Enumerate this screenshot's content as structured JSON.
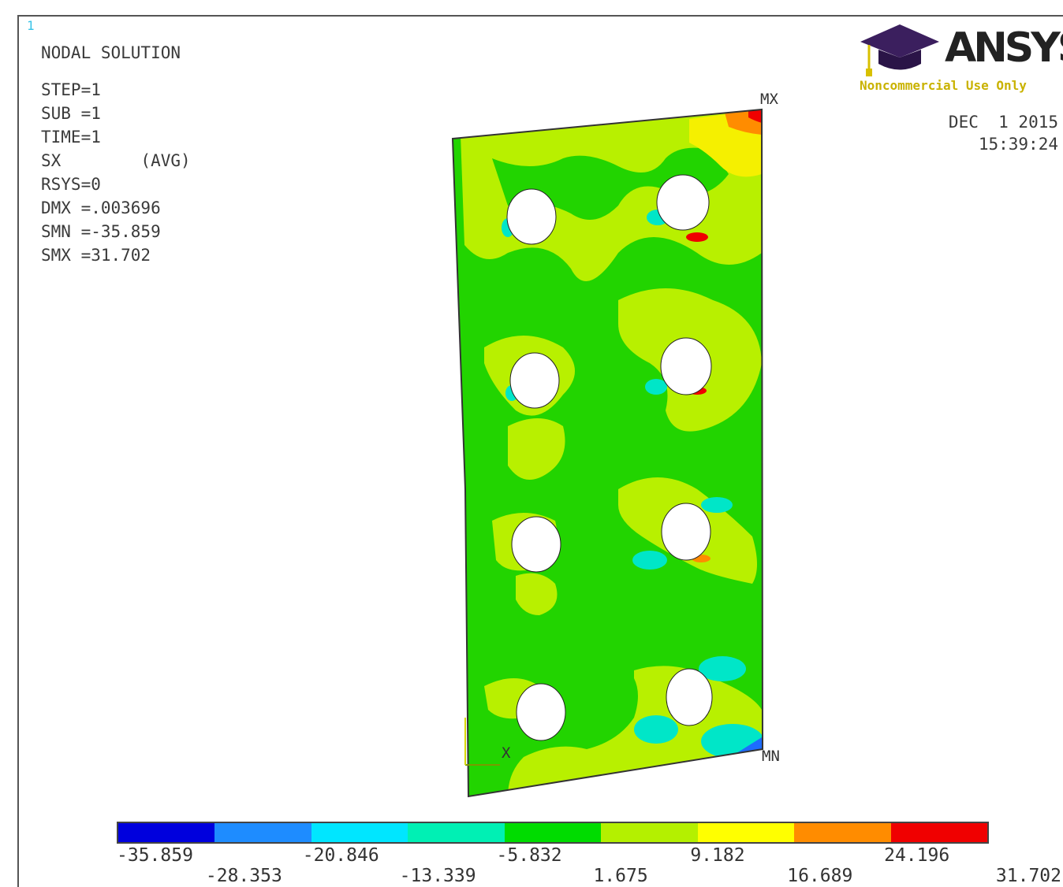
{
  "window_number": "1",
  "result_title": "NODAL SOLUTION",
  "info": [
    "STEP=1",
    "SUB =1",
    "TIME=1",
    "SX        (AVG)",
    "RSYS=0",
    "DMX =.003696",
    "SMN =-35.859",
    "SMX =31.702"
  ],
  "logo": {
    "name": "ANSYS",
    "subtitle": "Noncommercial Use Only"
  },
  "date": "DEC  1 2015",
  "time": "15:39:24",
  "markers": {
    "max": "MX",
    "min": "MN",
    "axis": "X"
  },
  "legend": {
    "colors": [
      "#0000dd",
      "#1e8cff",
      "#00e6ff",
      "#00f0b4",
      "#00dc00",
      "#b4f000",
      "#ffff00",
      "#ff8c00",
      "#f00000"
    ],
    "labels_top": [
      "-35.859",
      "-20.846",
      "-5.832",
      "9.182",
      "24.196"
    ],
    "labels_bottom": [
      "-28.353",
      "-13.339",
      "1.675",
      "16.689",
      "31.702"
    ]
  },
  "contour_colors": {
    "base": "#22d400",
    "light": "#b8f000",
    "yellow": "#f5f000",
    "orange": "#ff8c00",
    "red": "#f00000",
    "cyan": "#00e6c8",
    "blue": "#1e6cff"
  }
}
